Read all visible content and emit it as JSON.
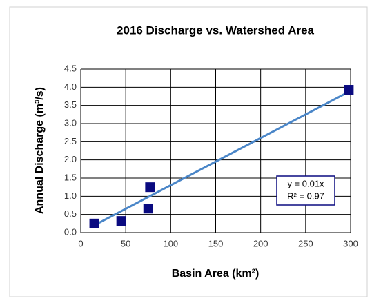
{
  "chart_data": {
    "type": "scatter",
    "title": "2016 Discharge vs. Watershed Area",
    "x_label": "Basin Area (km²)",
    "y_label": "Annual Discharge (m³/s)",
    "series": [
      {
        "name": "Discharge",
        "color": "#0a0a80",
        "x": [
          15,
          45,
          77,
          75,
          298
        ],
        "values": [
          0.25,
          0.32,
          1.25,
          0.66,
          3.93
        ]
      }
    ],
    "trendline": {
      "color": "#4a86c8",
      "x": [
        15,
        300
      ],
      "values": [
        0.2,
        3.9
      ]
    },
    "annotations": [
      "y = 0.01x",
      "R² = 0.97"
    ],
    "xlim": [
      0,
      300
    ],
    "xticks": [
      0,
      50,
      100,
      150,
      200,
      250,
      300
    ],
    "ylim": [
      0,
      4.5
    ],
    "yticks": [
      {
        "value": 0,
        "label": "0.0"
      },
      {
        "value": 0.5,
        "label": "0.5"
      },
      {
        "value": 1,
        "label": "1.0"
      },
      {
        "value": 1.5,
        "label": "1.5"
      },
      {
        "value": 2,
        "label": "2.0"
      },
      {
        "value": 2.5,
        "label": "2.5"
      },
      {
        "value": 3,
        "label": "3.0"
      },
      {
        "value": 3.5,
        "label": "3.5"
      },
      {
        "value": 4,
        "label": "4.0"
      },
      {
        "value": 4.5,
        "label": "4.5"
      }
    ],
    "grid": true
  }
}
